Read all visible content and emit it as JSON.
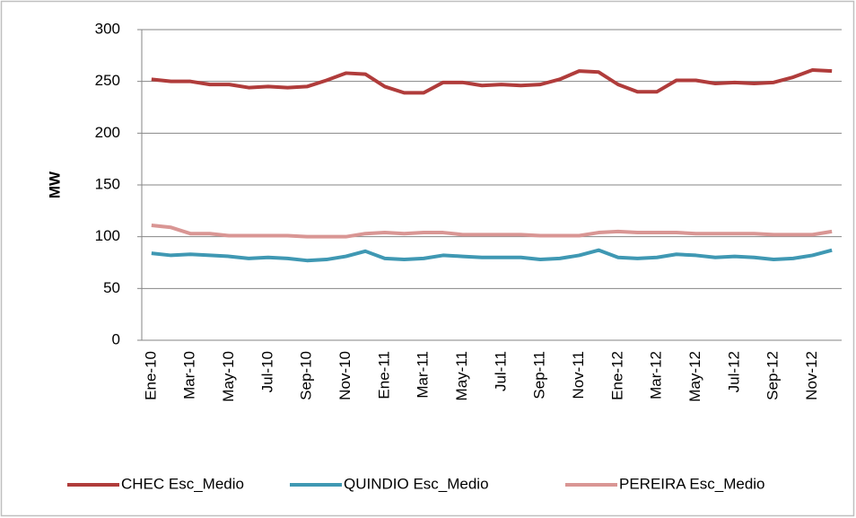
{
  "chart_data": {
    "type": "line",
    "y_label": "MW",
    "categories": [
      "Ene-10",
      null,
      "Mar-10",
      null,
      "May-10",
      null,
      "Jul-10",
      null,
      "Sep-10",
      null,
      "Nov-10",
      null,
      "Ene-11",
      null,
      "Mar-11",
      null,
      "May-11",
      null,
      "Jul-11",
      null,
      "Sep-11",
      null,
      "Nov-11",
      null,
      "Ene-12",
      null,
      "Mar-12",
      null,
      "May-12",
      null,
      "Jul-12",
      null,
      "Sep-12",
      null,
      "Nov-12",
      null
    ],
    "series": [
      {
        "name": "CHEC Esc_Medio",
        "color": "#b03c3b",
        "values": [
          252,
          250,
          250,
          247,
          247,
          244,
          245,
          244,
          245,
          251,
          258,
          257,
          245,
          239,
          239,
          249,
          249,
          246,
          247,
          246,
          247,
          252,
          260,
          259,
          247,
          240,
          240,
          251,
          251,
          248,
          249,
          248,
          249,
          254,
          261,
          260
        ]
      },
      {
        "name": "QUINDIO Esc_Medio",
        "color": "#3f98b3",
        "values": [
          84,
          82,
          83,
          82,
          81,
          79,
          80,
          79,
          77,
          78,
          81,
          86,
          79,
          78,
          79,
          82,
          81,
          80,
          80,
          80,
          78,
          79,
          82,
          87,
          80,
          79,
          80,
          83,
          82,
          80,
          81,
          80,
          78,
          79,
          82,
          87
        ]
      },
      {
        "name": "PEREIRA Esc_Medio",
        "color": "#d99694",
        "values": [
          111,
          109,
          103,
          103,
          101,
          101,
          101,
          101,
          100,
          100,
          100,
          103,
          104,
          103,
          104,
          104,
          102,
          102,
          102,
          102,
          101,
          101,
          101,
          104,
          105,
          104,
          104,
          104,
          103,
          103,
          103,
          103,
          102,
          102,
          102,
          105
        ]
      }
    ],
    "ylim": [
      0,
      300
    ],
    "yticks": [
      0,
      50,
      100,
      150,
      200,
      250,
      300
    ],
    "grid": true,
    "legend": "bottom"
  }
}
